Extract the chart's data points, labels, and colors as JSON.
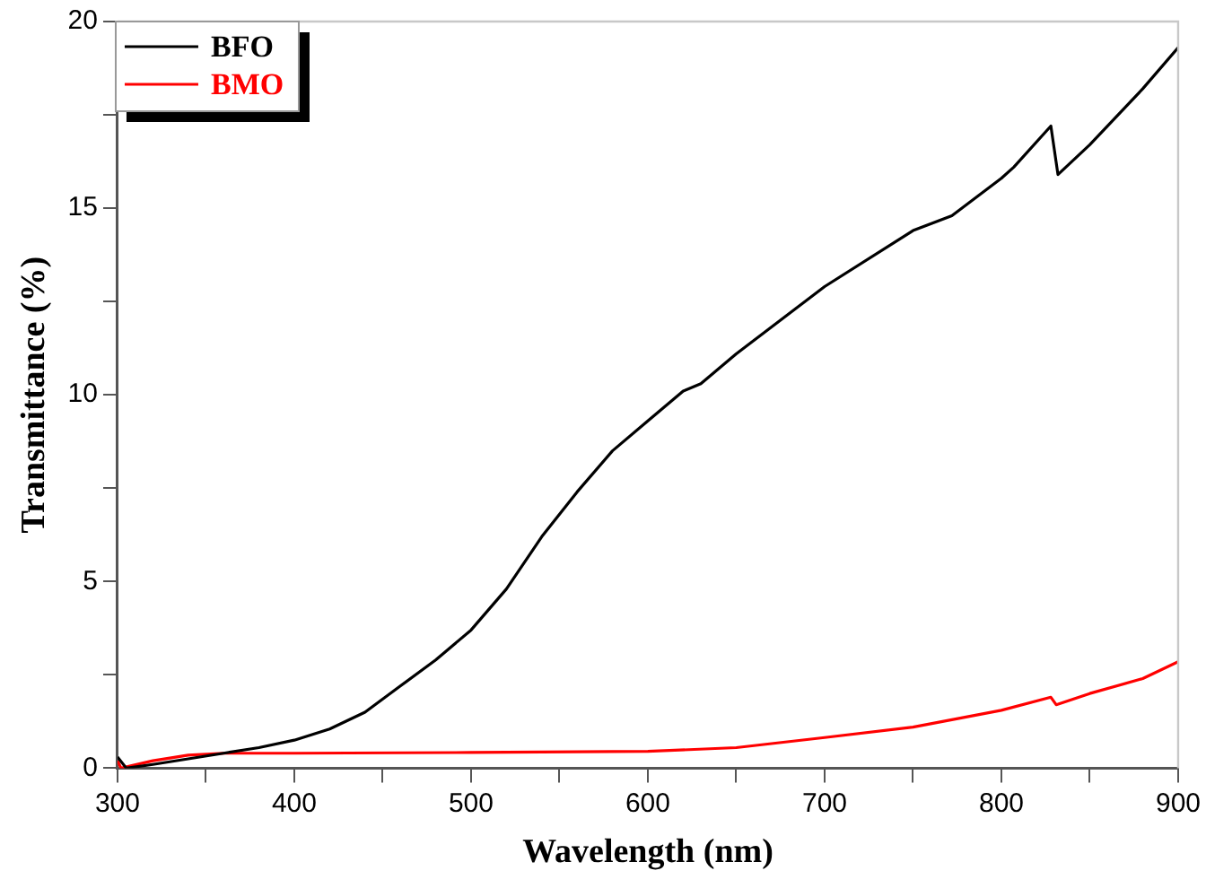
{
  "chart_data": {
    "type": "line",
    "xlabel": "Wavelength (nm)",
    "ylabel": "Transmittance (%)",
    "xlim": [
      300,
      900
    ],
    "xticks": [
      300,
      {
        "value": 350,
        "label": null
      },
      400,
      {
        "value": 450,
        "label": null
      },
      500,
      {
        "value": 550,
        "label": null
      },
      600,
      {
        "value": 650,
        "label": null
      },
      700,
      {
        "value": 750,
        "label": null
      },
      800,
      {
        "value": 850,
        "label": null
      },
      900
    ],
    "ylim": [
      0,
      20
    ],
    "yticks": [
      0,
      {
        "value": 2.5,
        "label": null
      },
      5,
      {
        "value": 7.5,
        "label": null
      },
      10,
      {
        "value": 12.5,
        "label": null
      },
      15,
      {
        "value": 17.5,
        "label": null
      },
      20
    ],
    "grid": false,
    "legend": "top left",
    "marker": "none",
    "line_style": "solid",
    "series": [
      {
        "name": "BFO",
        "color": "#000000",
        "x": [
          300,
          305,
          320,
          340,
          360,
          380,
          400,
          420,
          440,
          460,
          480,
          500,
          520,
          540,
          560,
          580,
          600,
          620,
          630,
          650,
          700,
          750,
          772,
          800,
          807,
          828,
          832,
          850,
          880,
          900
        ],
        "values": [
          0.3,
          0,
          0.1,
          0.25,
          0.4,
          0.55,
          0.75,
          1.05,
          1.5,
          2.2,
          2.9,
          3.7,
          4.8,
          6.2,
          7.4,
          8.5,
          9.3,
          10.1,
          10.3,
          11.1,
          12.9,
          14.4,
          14.8,
          15.8,
          16.1,
          17.2,
          15.9,
          16.7,
          18.2,
          19.3
        ]
      },
      {
        "name": "BMO",
        "color": "#ff0000",
        "x": [
          300,
          302,
          320,
          340,
          360,
          400,
          500,
          600,
          650,
          700,
          750,
          800,
          828,
          831,
          850,
          880,
          900
        ],
        "values": [
          0.2,
          0,
          0.2,
          0.35,
          0.4,
          0.4,
          0.42,
          0.45,
          0.55,
          0.82,
          1.1,
          1.55,
          1.9,
          1.7,
          2.0,
          2.4,
          2.85
        ]
      }
    ]
  }
}
